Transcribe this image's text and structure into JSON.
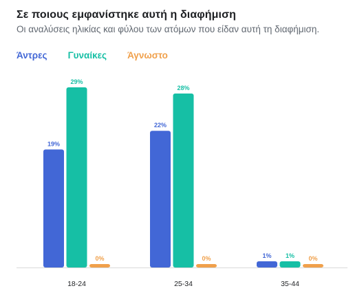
{
  "header": {
    "title": "Σε ποιους εμφανίστηκε αυτή η διαφήμιση",
    "subtitle": "Οι αναλύσεις ηλικίας και φύλου των ατόμων που είδαν αυτή τη διαφήμιση."
  },
  "colors": {
    "men": "#4267d6",
    "women": "#16bfa5",
    "unknown": "#f0a04b",
    "axis": "#d9d9d9"
  },
  "chart_data": {
    "type": "bar",
    "categories": [
      "18-24",
      "25-34",
      "35-44"
    ],
    "series": [
      {
        "name": "Άντρες",
        "color": "#4267d6",
        "values": [
          19,
          22,
          1
        ],
        "labels": [
          "19%",
          "22%",
          "1%"
        ]
      },
      {
        "name": "Γυναίκες",
        "color": "#16bfa5",
        "values": [
          29,
          28,
          1
        ],
        "labels": [
          "29%",
          "28%",
          "1%"
        ]
      },
      {
        "name": "Άγνωστο",
        "color": "#f0a04b",
        "values": [
          0,
          0,
          0
        ],
        "labels": [
          "0%",
          "0%",
          "0%"
        ]
      }
    ],
    "legend_position": "top-left",
    "grid": false,
    "ylim": [
      0,
      29
    ]
  }
}
